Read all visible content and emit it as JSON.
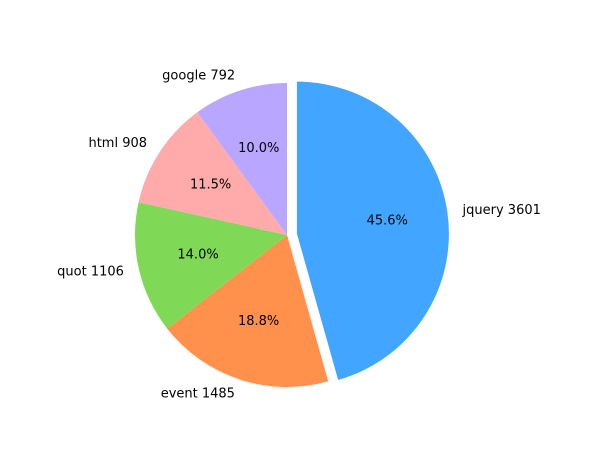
{
  "chart_data": {
    "type": "pie",
    "title": "",
    "start_angle_deg": 90,
    "direction": "clockwise",
    "slices": [
      {
        "label": "jquery",
        "value": 3601,
        "percent": 45.6,
        "display": "jquery 3601",
        "pct_text": "45.6%",
        "color": "#42a5ff",
        "exploded": true
      },
      {
        "label": "event",
        "value": 1485,
        "percent": 18.8,
        "display": "event 1485",
        "pct_text": "18.8%",
        "color": "#ff914d",
        "exploded": false
      },
      {
        "label": "quot",
        "value": 1106,
        "percent": 14.0,
        "display": "quot 1106",
        "pct_text": "14.0%",
        "color": "#7fd957",
        "exploded": false
      },
      {
        "label": "html",
        "value": 908,
        "percent": 11.5,
        "display": "html 908",
        "pct_text": "11.5%",
        "color": "#ffabab",
        "exploded": false
      },
      {
        "label": "google",
        "value": 792,
        "percent": 10.0,
        "display": "google 792",
        "pct_text": "10.0%",
        "color": "#b8a6ff",
        "exploded": false
      }
    ]
  }
}
